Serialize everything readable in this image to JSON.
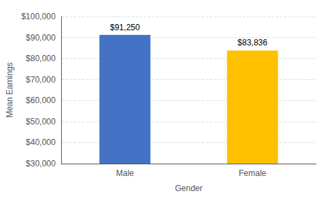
{
  "chart_data": {
    "type": "bar",
    "categories": [
      "Male",
      "Female"
    ],
    "values": [
      91250,
      83836
    ],
    "colors": [
      "#4472C4",
      "#FFC000"
    ],
    "data_labels": true,
    "value_labels": [
      "$91,250",
      "$83,836"
    ],
    "xlabel": "Gender",
    "ylabel": "Mean Earnings",
    "ylim": [
      30000,
      100000
    ],
    "yticks": [
      {
        "value": 30000,
        "label": "$30,000"
      },
      {
        "value": 40000,
        "label": "$40,000"
      },
      {
        "value": 50000,
        "label": "$50,000"
      },
      {
        "value": 60000,
        "label": "$60,000"
      },
      {
        "value": 70000,
        "label": "$70,000"
      },
      {
        "value": 80000,
        "label": "$80,000"
      },
      {
        "value": 90000,
        "label": "$90,000"
      },
      {
        "value": 100000,
        "label": "$100,000"
      }
    ],
    "grid": true
  }
}
